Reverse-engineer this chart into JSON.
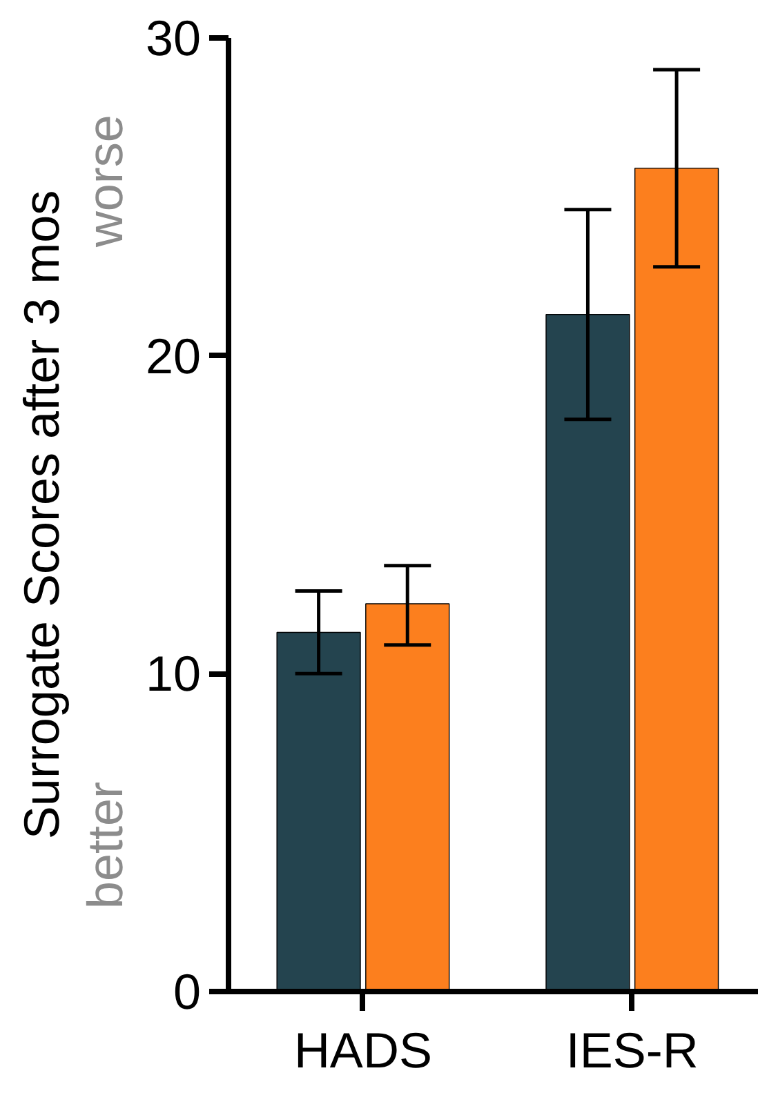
{
  "chart_data": {
    "type": "bar",
    "ylabel": "Surrogate Scores after 3 mos",
    "categories": [
      "HADS",
      "IES-R"
    ],
    "series": [
      {
        "color": "#24444f",
        "values": [
          11.3,
          21.3
        ],
        "errors": [
          [
            10.0,
            12.6
          ],
          [
            18.0,
            24.6
          ]
        ]
      },
      {
        "color": "#fc7f1e",
        "values": [
          12.2,
          25.9
        ],
        "errors": [
          [
            10.9,
            13.4
          ],
          [
            22.8,
            29.0
          ]
        ]
      }
    ],
    "ylim": [
      0,
      30
    ],
    "yticks": [
      0,
      10,
      20,
      30
    ],
    "grid": false,
    "annotations": [
      "better",
      "worse"
    ]
  }
}
